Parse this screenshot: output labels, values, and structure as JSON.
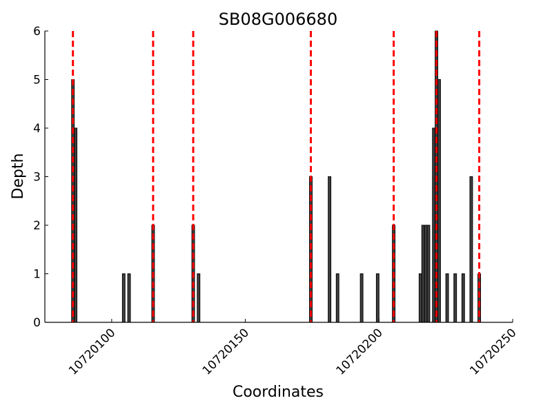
{
  "chart_data": {
    "type": "bar",
    "title": "SB08G006680",
    "xlabel": "Coordinates",
    "ylabel": "Depth",
    "xlim": [
      10720075,
      10720250
    ],
    "ylim": [
      0,
      6
    ],
    "xticks": [
      10720100,
      10720150,
      10720200,
      10720250
    ],
    "xtick_labels": [
      "10720100",
      "10720150",
      "10720200",
      "10720250"
    ],
    "yticks": [
      0,
      1,
      2,
      3,
      4,
      5,
      6
    ],
    "ytick_labels": [
      "0",
      "1",
      "2",
      "3",
      "4",
      "5",
      "6"
    ],
    "bar_width": 1,
    "grid": false,
    "colors": {
      "bar_fill": "#404040",
      "bar_edge": "#000000",
      "marker_line": "#ff0000"
    },
    "bars": [
      {
        "x": 10720085,
        "y": 5
      },
      {
        "x": 10720086,
        "y": 4
      },
      {
        "x": 10720104,
        "y": 1
      },
      {
        "x": 10720106,
        "y": 1
      },
      {
        "x": 10720115,
        "y": 2
      },
      {
        "x": 10720130,
        "y": 2
      },
      {
        "x": 10720132,
        "y": 1
      },
      {
        "x": 10720174,
        "y": 3
      },
      {
        "x": 10720181,
        "y": 3
      },
      {
        "x": 10720184,
        "y": 1
      },
      {
        "x": 10720193,
        "y": 1
      },
      {
        "x": 10720199,
        "y": 1
      },
      {
        "x": 10720205,
        "y": 2
      },
      {
        "x": 10720215,
        "y": 1
      },
      {
        "x": 10720216,
        "y": 2
      },
      {
        "x": 10720217,
        "y": 2
      },
      {
        "x": 10720218,
        "y": 2
      },
      {
        "x": 10720220,
        "y": 4
      },
      {
        "x": 10720221,
        "y": 6
      },
      {
        "x": 10720222,
        "y": 5
      },
      {
        "x": 10720225,
        "y": 1
      },
      {
        "x": 10720228,
        "y": 1
      },
      {
        "x": 10720231,
        "y": 1
      },
      {
        "x": 10720234,
        "y": 3
      },
      {
        "x": 10720237,
        "y": 1
      }
    ],
    "marker_lines": [
      10720085.5,
      10720115.5,
      10720130.5,
      10720174.5,
      10720205.5,
      10720221.5,
      10720237.5
    ]
  }
}
